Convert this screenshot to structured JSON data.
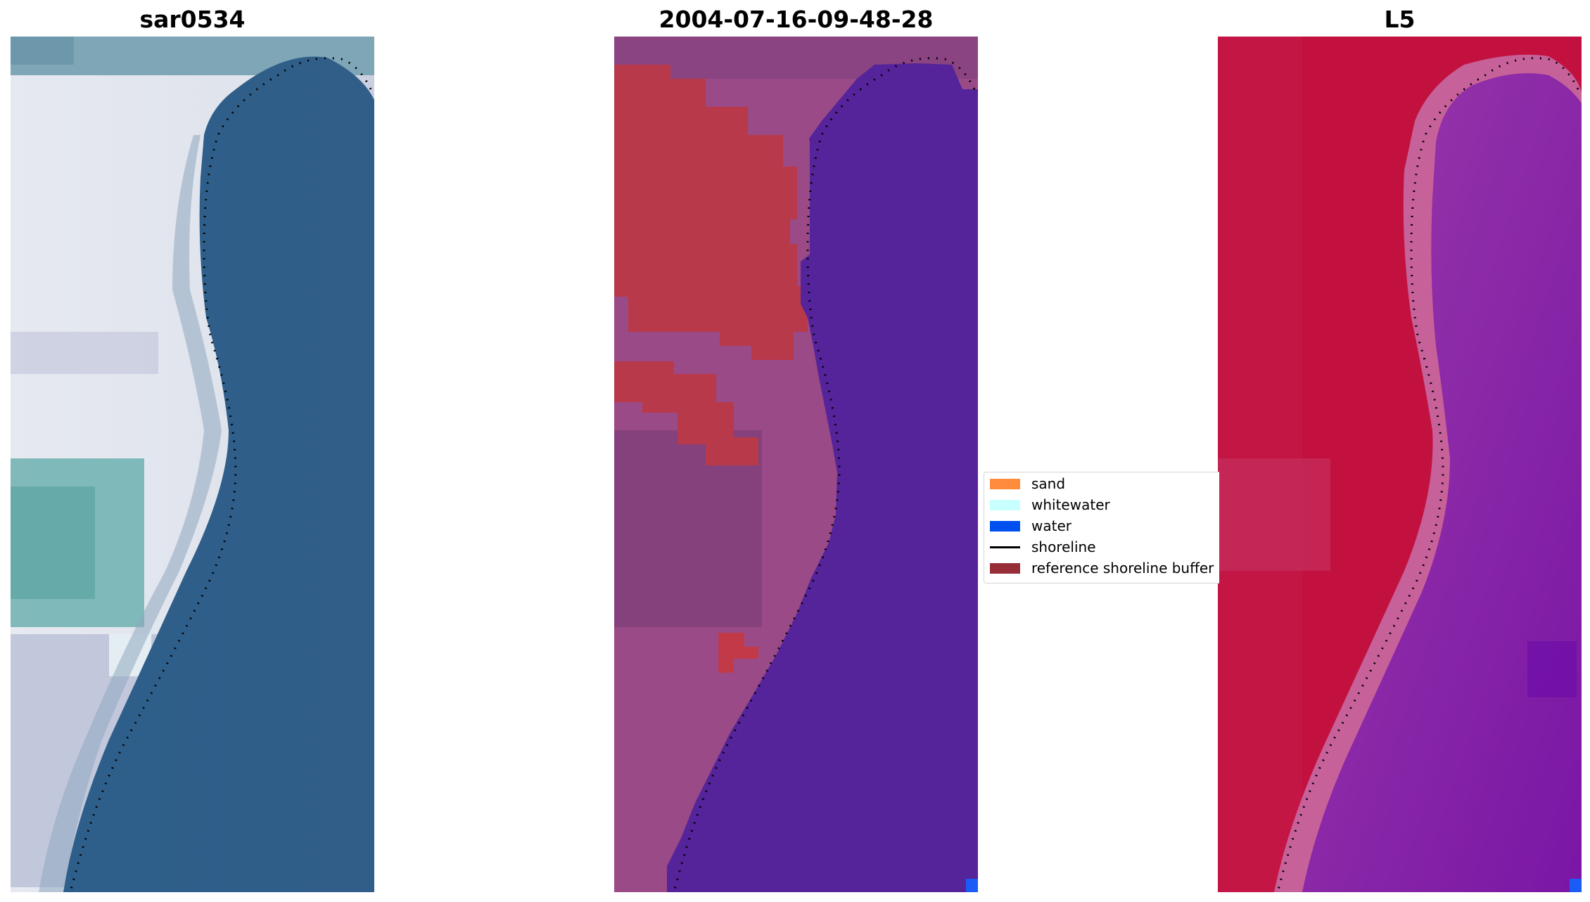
{
  "panels": [
    {
      "title": "sar0534"
    },
    {
      "title": "2004-07-16-09-48-28"
    },
    {
      "title": "L5"
    }
  ],
  "legend": {
    "items": [
      {
        "label": "sand",
        "kind": "patch",
        "color": "#ff8c3c"
      },
      {
        "label": "whitewater",
        "kind": "patch",
        "color": "#c8ffff"
      },
      {
        "label": "water",
        "kind": "patch",
        "color": "#0050f0"
      },
      {
        "label": "shoreline",
        "kind": "line",
        "color": "#000000"
      },
      {
        "label": "reference shoreline buffer",
        "kind": "patch",
        "color": "#962d37"
      }
    ]
  },
  "colors": {
    "rgb_water": "#2e5d87",
    "rgb_land": "#d8dde8",
    "class_water": "#55239a",
    "class_land": "#9a4a86",
    "class_buffer": "#b8394a",
    "index_land": "#c2113f",
    "index_water": "#8a2aa0",
    "index_edge": "#c76199",
    "water_pixel": "#1a5cf5"
  }
}
